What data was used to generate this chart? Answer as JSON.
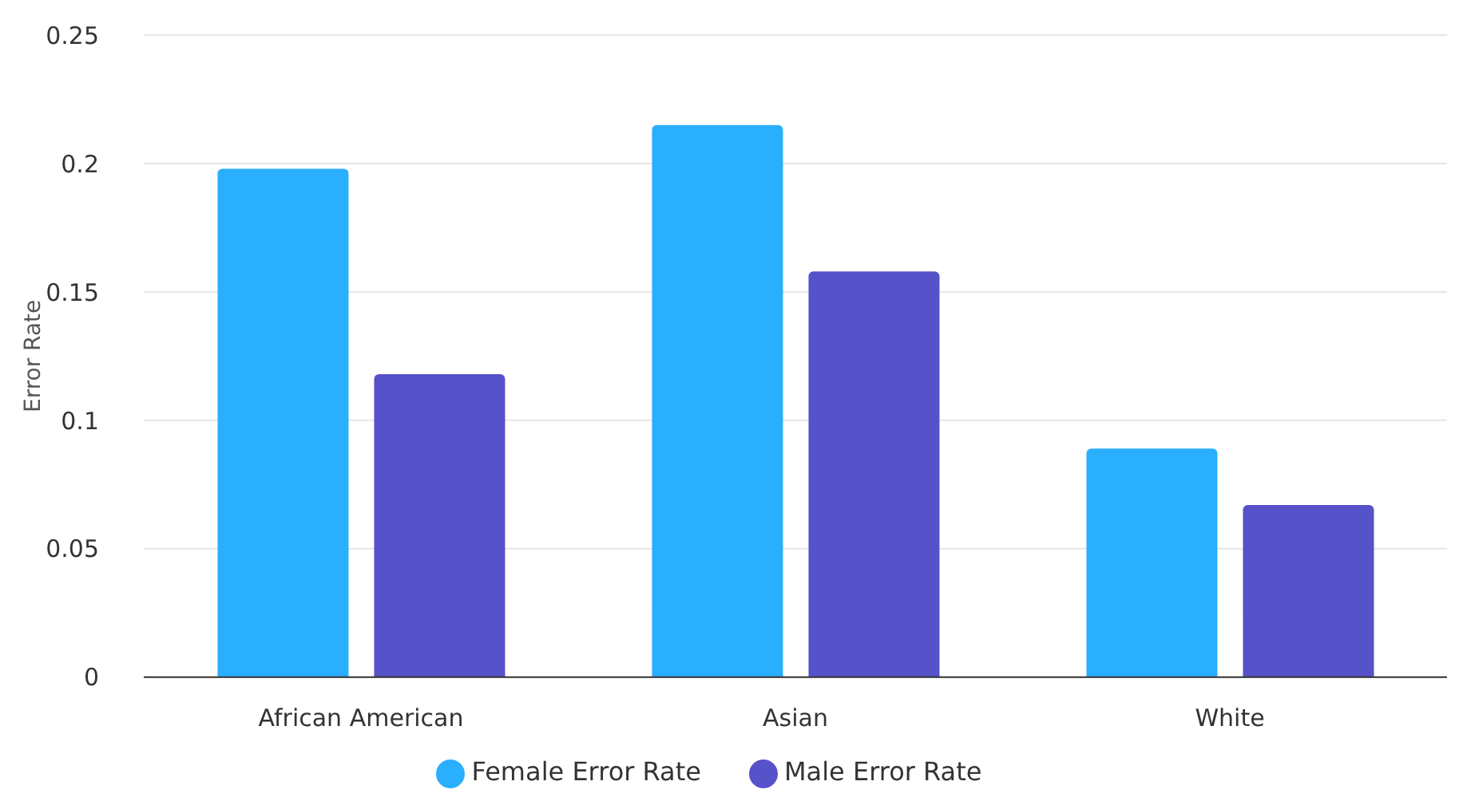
{
  "chart_data": {
    "type": "bar",
    "ylabel": "Error Rate",
    "categories": [
      "African American",
      "Asian",
      "White"
    ],
    "series": [
      {
        "name": "Female Error Rate",
        "color": "#2aaefe",
        "values": [
          0.198,
          0.215,
          0.089
        ]
      },
      {
        "name": "Male Error Rate",
        "color": "#5652c9",
        "values": [
          0.118,
          0.158,
          0.067
        ]
      }
    ],
    "ylim": [
      0,
      0.25
    ],
    "yticks": [
      0,
      0.05,
      0.1,
      0.15,
      0.2,
      0.25
    ],
    "grid": "y",
    "legend": "bottom"
  }
}
